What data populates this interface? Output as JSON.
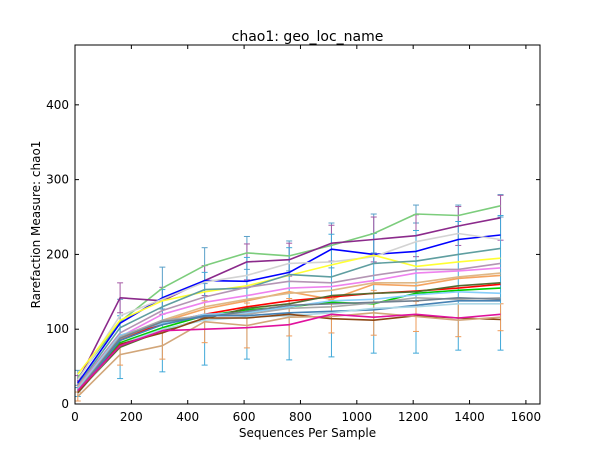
{
  "chart_data": {
    "type": "line",
    "title": "chao1: geo_loc_name",
    "xlabel": "Sequences Per Sample",
    "ylabel": "Rarefaction Measure: chao1",
    "xlim": [
      0,
      1650
    ],
    "ylim": [
      0,
      480
    ],
    "xticks": [
      0,
      200,
      400,
      600,
      800,
      1000,
      1200,
      1400,
      1600
    ],
    "yticks": [
      0,
      100,
      200,
      300,
      400
    ],
    "grid": false,
    "legend": "none",
    "error_bars": true,
    "x": [
      10,
      160,
      310,
      460,
      610,
      760,
      910,
      1060,
      1210,
      1360,
      1510
    ],
    "series": [
      {
        "color": "#7ccd7c",
        "values": [
          35,
          110,
          155,
          185,
          202,
          198,
          212,
          228,
          254,
          252,
          265
        ]
      },
      {
        "color": "#8b2a8b",
        "values": [
          30,
          142,
          138,
          165,
          190,
          193,
          215,
          220,
          225,
          238,
          249
        ]
      },
      {
        "color": "#0000ff",
        "values": [
          28,
          108,
          142,
          165,
          164,
          176,
          207,
          200,
          204,
          220,
          226
        ]
      },
      {
        "color": "#d3d3d3",
        "values": [
          32,
          118,
          140,
          163,
          172,
          188,
          190,
          197,
          217,
          228,
          220
        ]
      },
      {
        "color": "#ffff33",
        "values": [
          40,
          112,
          138,
          150,
          158,
          172,
          186,
          199,
          184,
          190,
          195
        ]
      },
      {
        "color": "#5f9ea0",
        "values": [
          25,
          102,
          130,
          153,
          155,
          173,
          170,
          188,
          191,
          200,
          208
        ]
      },
      {
        "color": "#b495b4",
        "values": [
          24,
          95,
          125,
          143,
          156,
          164,
          162,
          172,
          180,
          180,
          188
        ]
      },
      {
        "color": "#ee82ee",
        "values": [
          22,
          90,
          120,
          136,
          145,
          155,
          157,
          165,
          175,
          178,
          182
        ]
      },
      {
        "color": "#f4a460",
        "values": [
          20,
          86,
          110,
          127,
          138,
          150,
          140,
          160,
          158,
          168,
          172
        ]
      },
      {
        "color": "#deb887",
        "values": [
          22,
          88,
          112,
          130,
          140,
          148,
          152,
          162,
          162,
          170,
          175
        ]
      },
      {
        "color": "#ff0000",
        "values": [
          20,
          85,
          108,
          120,
          130,
          138,
          143,
          148,
          151,
          155,
          160
        ]
      },
      {
        "color": "#00cc00",
        "values": [
          18,
          82,
          102,
          118,
          126,
          130,
          136,
          134,
          148,
          152,
          155
        ]
      },
      {
        "color": "#556b2f",
        "values": [
          16,
          76,
          98,
          114,
          128,
          134,
          145,
          148,
          150,
          158,
          162
        ]
      },
      {
        "color": "#87cefa",
        "values": [
          20,
          92,
          108,
          120,
          122,
          130,
          138,
          140,
          146,
          150,
          148
        ]
      },
      {
        "color": "#a9a9a9",
        "values": [
          18,
          90,
          112,
          118,
          120,
          128,
          130,
          135,
          142,
          140,
          142
        ]
      },
      {
        "color": "#708090",
        "values": [
          17,
          88,
          110,
          116,
          124,
          132,
          134,
          136,
          138,
          142,
          140
        ]
      },
      {
        "color": "#4682b4",
        "values": [
          15,
          85,
          106,
          118,
          118,
          122,
          124,
          126,
          132,
          138,
          138
        ]
      },
      {
        "color": "#add8e6",
        "values": [
          14,
          80,
          100,
          112,
          116,
          118,
          122,
          128,
          130,
          134,
          134
        ]
      },
      {
        "color": "#8b4513",
        "values": [
          15,
          80,
          95,
          115,
          115,
          120,
          114,
          112,
          118,
          115,
          113
        ]
      },
      {
        "color": "#d2a679",
        "values": [
          10,
          66,
          78,
          110,
          105,
          116,
          117,
          122,
          117,
          112,
          116
        ]
      },
      {
        "color": "#e0119d",
        "values": [
          18,
          78,
          98,
          100,
          102,
          106,
          120,
          116,
          120,
          115,
          120
        ]
      }
    ],
    "error_series": [
      {
        "color": "#5aa0c8",
        "values": [
          35,
          110,
          155,
          185,
          202,
          198,
          212,
          228,
          254,
          252,
          265
        ],
        "err": [
          10,
          30,
          28,
          24,
          22,
          20,
          30,
          26,
          12,
          14,
          15
        ]
      },
      {
        "color": "#a55aa5",
        "values": [
          30,
          142,
          138,
          165,
          190,
          193,
          215,
          220,
          225,
          238,
          249
        ],
        "err": [
          8,
          20,
          18,
          20,
          24,
          22,
          24,
          30,
          28,
          26,
          30
        ]
      },
      {
        "color": "#40a8d8",
        "values": [
          16,
          76,
          98,
          114,
          128,
          134,
          145,
          148,
          150,
          158,
          162
        ],
        "err": [
          6,
          42,
          55,
          62,
          68,
          75,
          82,
          80,
          82,
          86,
          90
        ]
      },
      {
        "color": "#ee9b5a",
        "values": [
          10,
          66,
          78,
          110,
          105,
          116,
          117,
          122,
          117,
          112,
          116
        ],
        "err": [
          6,
          14,
          18,
          28,
          30,
          25,
          22,
          30,
          20,
          22,
          18
        ]
      }
    ]
  }
}
